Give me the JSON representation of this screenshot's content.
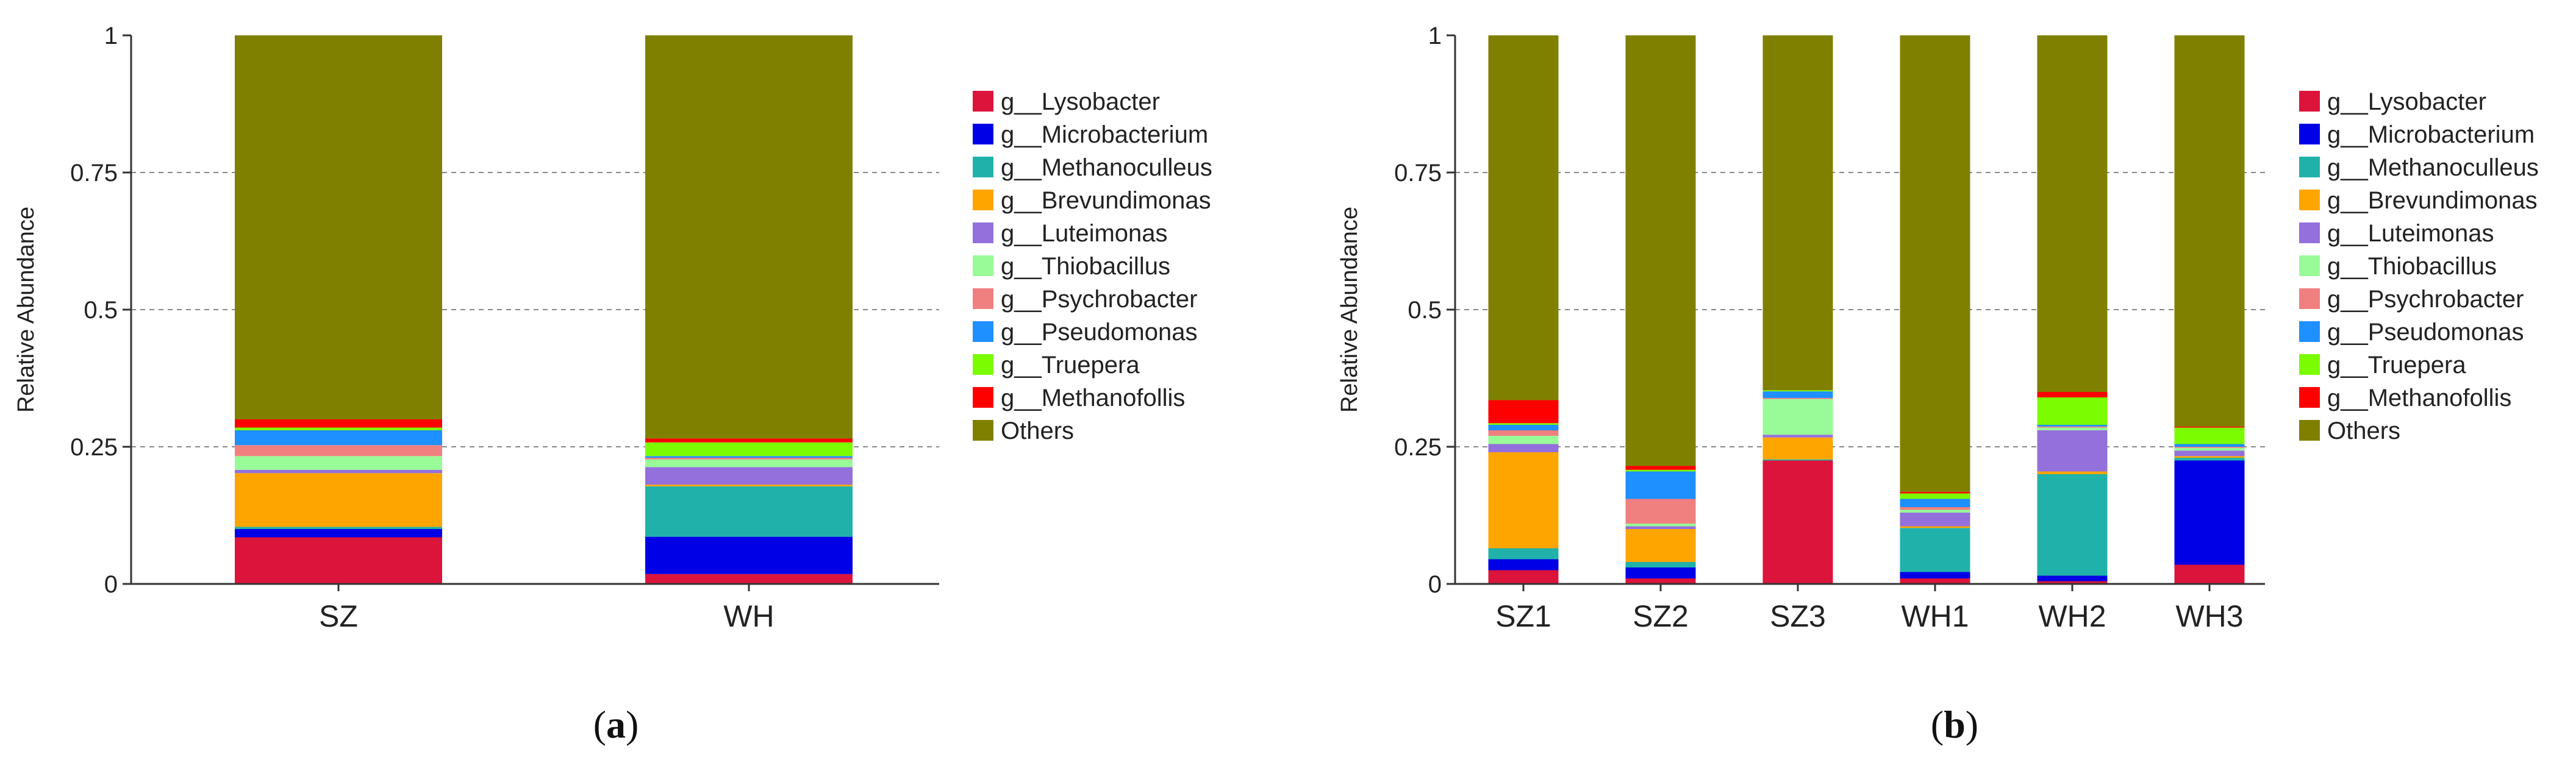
{
  "colors": {
    "g__Lysobacter": "#DC143C",
    "g__Microbacterium": "#0000E6",
    "g__Methanoculleus": "#20B2AA",
    "g__Brevundimonas": "#FFA500",
    "g__Luteimonas": "#9370DB",
    "g__Thiobacillus": "#98FB98",
    "g__Psychrobacter": "#F08080",
    "g__Pseudomonas": "#1E90FF",
    "g__Truepera": "#7CFC00",
    "g__Methanofollis": "#FF0000",
    "Others": "#808000"
  },
  "chart_data": [
    {
      "panel": "a",
      "panel_label": "a",
      "type": "bar",
      "stacked": true,
      "categories": [
        "SZ",
        "WH"
      ],
      "ylabel": "Relative Abundance",
      "xlabel": "",
      "ylim": [
        0,
        1
      ],
      "yticks": [
        "0",
        "0.25",
        "0.5",
        "0.75",
        "1"
      ],
      "ytick_values": [
        0,
        0.25,
        0.5,
        0.75,
        1
      ],
      "grid": "dashed horizontal at 0.25, 0.5, 0.75",
      "legend_position": "right",
      "series": [
        {
          "name": "g__Lysobacter",
          "values": [
            0.085,
            0.018
          ]
        },
        {
          "name": "g__Microbacterium",
          "values": [
            0.015,
            0.068
          ]
        },
        {
          "name": "g__Methanoculleus",
          "values": [
            0.004,
            0.092
          ]
        },
        {
          "name": "g__Brevundimonas",
          "values": [
            0.098,
            0.003
          ]
        },
        {
          "name": "g__Luteimonas",
          "values": [
            0.006,
            0.032
          ]
        },
        {
          "name": "g__Thiobacillus",
          "values": [
            0.025,
            0.014
          ]
        },
        {
          "name": "g__Psychrobacter",
          "values": [
            0.02,
            0.003
          ]
        },
        {
          "name": "g__Pseudomonas",
          "values": [
            0.027,
            0.003
          ]
        },
        {
          "name": "g__Truepera",
          "values": [
            0.005,
            0.025
          ]
        },
        {
          "name": "g__Methanofollis",
          "values": [
            0.015,
            0.007
          ]
        },
        {
          "name": "Others",
          "values": [
            0.7,
            0.735
          ]
        }
      ]
    },
    {
      "panel": "b",
      "panel_label": "b",
      "type": "bar",
      "stacked": true,
      "categories": [
        "SZ1",
        "SZ2",
        "SZ3",
        "WH1",
        "WH2",
        "WH3"
      ],
      "ylabel": "Relative Abundance",
      "xlabel": "",
      "ylim": [
        0,
        1
      ],
      "yticks": [
        "0",
        "0.25",
        "0.5",
        "0.75",
        "1"
      ],
      "ytick_values": [
        0,
        0.25,
        0.5,
        0.75,
        1
      ],
      "grid": "dashed horizontal at 0.25, 0.5, 0.75",
      "legend_position": "right",
      "series": [
        {
          "name": "g__Lysobacter",
          "values": [
            0.025,
            0.01,
            0.225,
            0.01,
            0.005,
            0.035
          ]
        },
        {
          "name": "g__Microbacterium",
          "values": [
            0.02,
            0.02,
            0.0,
            0.012,
            0.01,
            0.19
          ]
        },
        {
          "name": "g__Methanoculleus",
          "values": [
            0.02,
            0.01,
            0.002,
            0.08,
            0.185,
            0.005
          ]
        },
        {
          "name": "g__Brevundimonas",
          "values": [
            0.175,
            0.06,
            0.04,
            0.003,
            0.005,
            0.003
          ]
        },
        {
          "name": "g__Luteimonas",
          "values": [
            0.015,
            0.005,
            0.005,
            0.025,
            0.075,
            0.01
          ]
        },
        {
          "name": "g__Thiobacillus",
          "values": [
            0.015,
            0.005,
            0.065,
            0.005,
            0.005,
            0.005
          ]
        },
        {
          "name": "g__Psychrobacter",
          "values": [
            0.01,
            0.045,
            0.002,
            0.005,
            0.002,
            0.002
          ]
        },
        {
          "name": "g__Pseudomonas",
          "values": [
            0.01,
            0.05,
            0.012,
            0.015,
            0.003,
            0.005
          ]
        },
        {
          "name": "g__Truepera",
          "values": [
            0.003,
            0.003,
            0.002,
            0.01,
            0.05,
            0.03
          ]
        },
        {
          "name": "g__Methanofollis",
          "values": [
            0.042,
            0.007,
            0.0,
            0.003,
            0.01,
            0.002
          ]
        },
        {
          "name": "Others",
          "values": [
            0.665,
            0.785,
            0.647,
            0.832,
            0.65,
            0.713
          ]
        }
      ]
    }
  ]
}
